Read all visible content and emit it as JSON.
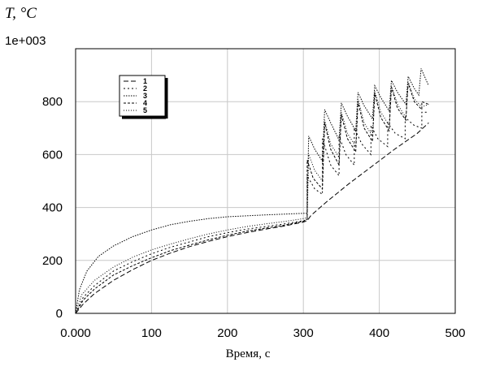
{
  "chart_data": {
    "type": "line",
    "ylabel": "T, °C",
    "xlabel": "Время, с",
    "top_label": "1e+003",
    "xlim": [
      0,
      500
    ],
    "ylim": [
      0,
      1000
    ],
    "xticks": [
      0,
      100,
      200,
      300,
      400,
      500
    ],
    "xtick_labels": [
      "0.000",
      "100",
      "200",
      "300",
      "400",
      "500"
    ],
    "yticks": [
      0,
      200,
      400,
      600,
      800
    ],
    "ytick_labels": [
      "0",
      "200",
      "400",
      "600",
      "800"
    ],
    "grid": true,
    "legend_position": "top-left",
    "series": [
      {
        "name": "1",
        "dash": "6,3",
        "points": [
          [
            0,
            0
          ],
          [
            10,
            35
          ],
          [
            25,
            75
          ],
          [
            50,
            125
          ],
          [
            75,
            165
          ],
          [
            100,
            200
          ],
          [
            125,
            228
          ],
          [
            150,
            252
          ],
          [
            175,
            272
          ],
          [
            200,
            290
          ],
          [
            225,
            305
          ],
          [
            250,
            318
          ],
          [
            275,
            330
          ],
          [
            300,
            345
          ],
          [
            305,
            350
          ],
          [
            310,
            370
          ],
          [
            330,
            420
          ],
          [
            360,
            490
          ],
          [
            390,
            555
          ],
          [
            420,
            620
          ],
          [
            450,
            680
          ],
          [
            465,
            720
          ]
        ]
      },
      {
        "name": "2",
        "dash": "2,3",
        "points": [
          [
            0,
            0
          ],
          [
            10,
            60
          ],
          [
            25,
            105
          ],
          [
            50,
            160
          ],
          [
            75,
            195
          ],
          [
            100,
            225
          ],
          [
            125,
            250
          ],
          [
            150,
            270
          ],
          [
            175,
            290
          ],
          [
            200,
            305
          ],
          [
            225,
            318
          ],
          [
            250,
            328
          ],
          [
            275,
            338
          ],
          [
            300,
            350
          ],
          [
            305,
            355
          ],
          [
            305,
            520
          ],
          [
            315,
            470
          ],
          [
            325,
            450
          ],
          [
            325,
            660
          ],
          [
            336,
            560
          ],
          [
            347,
            520
          ],
          [
            347,
            670
          ],
          [
            356,
            600
          ],
          [
            367,
            560
          ],
          [
            367,
            700
          ],
          [
            377,
            640
          ],
          [
            389,
            600
          ],
          [
            389,
            710
          ],
          [
            398,
            660
          ],
          [
            411,
            630
          ],
          [
            411,
            720
          ],
          [
            421,
            680
          ],
          [
            434,
            660
          ],
          [
            434,
            740
          ],
          [
            446,
            710
          ],
          [
            456,
            700
          ],
          [
            456,
            760
          ],
          [
            465,
            760
          ]
        ]
      },
      {
        "name": "3",
        "dash": "1.5,1.5",
        "points": [
          [
            0,
            0
          ],
          [
            5,
            90
          ],
          [
            15,
            160
          ],
          [
            30,
            215
          ],
          [
            50,
            255
          ],
          [
            75,
            290
          ],
          [
            100,
            315
          ],
          [
            125,
            335
          ],
          [
            150,
            348
          ],
          [
            175,
            358
          ],
          [
            200,
            365
          ],
          [
            250,
            372
          ],
          [
            300,
            378
          ],
          [
            305,
            378
          ],
          [
            307,
            670
          ],
          [
            315,
            620
          ],
          [
            325,
            575
          ],
          [
            328,
            770
          ],
          [
            336,
            720
          ],
          [
            347,
            655
          ],
          [
            350,
            795
          ],
          [
            358,
            745
          ],
          [
            369,
            690
          ],
          [
            372,
            835
          ],
          [
            380,
            785
          ],
          [
            391,
            735
          ],
          [
            394,
            860
          ],
          [
            402,
            815
          ],
          [
            413,
            765
          ],
          [
            416,
            880
          ],
          [
            424,
            835
          ],
          [
            435,
            790
          ],
          [
            438,
            895
          ],
          [
            446,
            850
          ],
          [
            452,
            825
          ],
          [
            455,
            925
          ],
          [
            465,
            860
          ]
        ]
      },
      {
        "name": "4",
        "dash": "3,2",
        "points": [
          [
            0,
            0
          ],
          [
            10,
            50
          ],
          [
            25,
            92
          ],
          [
            50,
            145
          ],
          [
            75,
            180
          ],
          [
            100,
            210
          ],
          [
            125,
            237
          ],
          [
            150,
            258
          ],
          [
            175,
            278
          ],
          [
            200,
            295
          ],
          [
            225,
            310
          ],
          [
            250,
            322
          ],
          [
            275,
            333
          ],
          [
            300,
            348
          ],
          [
            305,
            355
          ],
          [
            305,
            580
          ],
          [
            313,
            510
          ],
          [
            325,
            470
          ],
          [
            328,
            720
          ],
          [
            336,
            620
          ],
          [
            347,
            560
          ],
          [
            350,
            750
          ],
          [
            358,
            660
          ],
          [
            369,
            610
          ],
          [
            372,
            800
          ],
          [
            380,
            700
          ],
          [
            391,
            650
          ],
          [
            394,
            830
          ],
          [
            402,
            740
          ],
          [
            413,
            690
          ],
          [
            416,
            855
          ],
          [
            424,
            775
          ],
          [
            435,
            730
          ],
          [
            438,
            870
          ],
          [
            446,
            800
          ],
          [
            456,
            770
          ],
          [
            456,
            800
          ],
          [
            465,
            790
          ]
        ]
      },
      {
        "name": "5",
        "dash": "1,2",
        "points": [
          [
            0,
            0
          ],
          [
            8,
            70
          ],
          [
            25,
            125
          ],
          [
            50,
            175
          ],
          [
            75,
            212
          ],
          [
            100,
            240
          ],
          [
            125,
            262
          ],
          [
            150,
            282
          ],
          [
            175,
            300
          ],
          [
            200,
            315
          ],
          [
            225,
            328
          ],
          [
            250,
            338
          ],
          [
            275,
            347
          ],
          [
            300,
            358
          ],
          [
            305,
            362
          ],
          [
            307,
            600
          ],
          [
            315,
            540
          ],
          [
            325,
            500
          ],
          [
            328,
            730
          ],
          [
            336,
            640
          ],
          [
            347,
            590
          ],
          [
            350,
            760
          ],
          [
            358,
            680
          ],
          [
            369,
            630
          ],
          [
            372,
            810
          ],
          [
            380,
            720
          ],
          [
            391,
            670
          ],
          [
            394,
            840
          ],
          [
            402,
            760
          ],
          [
            413,
            710
          ],
          [
            416,
            860
          ],
          [
            424,
            790
          ],
          [
            435,
            740
          ],
          [
            438,
            875
          ],
          [
            446,
            810
          ],
          [
            456,
            780
          ],
          [
            465,
            790
          ]
        ]
      }
    ]
  }
}
